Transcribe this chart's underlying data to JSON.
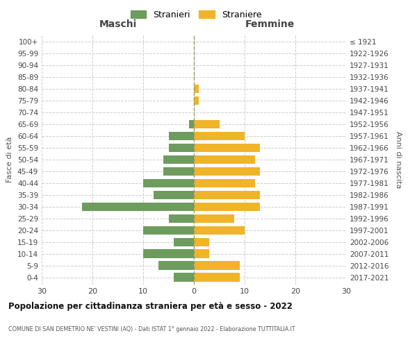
{
  "age_groups": [
    "0-4",
    "5-9",
    "10-14",
    "15-19",
    "20-24",
    "25-29",
    "30-34",
    "35-39",
    "40-44",
    "45-49",
    "50-54",
    "55-59",
    "60-64",
    "65-69",
    "70-74",
    "75-79",
    "80-84",
    "85-89",
    "90-94",
    "95-99",
    "100+"
  ],
  "birth_years": [
    "2017-2021",
    "2012-2016",
    "2007-2011",
    "2002-2006",
    "1997-2001",
    "1992-1996",
    "1987-1991",
    "1982-1986",
    "1977-1981",
    "1972-1976",
    "1967-1971",
    "1962-1966",
    "1957-1961",
    "1952-1956",
    "1947-1951",
    "1942-1946",
    "1937-1941",
    "1932-1936",
    "1927-1931",
    "1922-1926",
    "≤ 1921"
  ],
  "males": [
    4,
    7,
    10,
    4,
    10,
    5,
    22,
    8,
    10,
    6,
    6,
    5,
    5,
    1,
    0,
    0,
    0,
    0,
    0,
    0,
    0
  ],
  "females": [
    9,
    9,
    3,
    3,
    10,
    8,
    13,
    13,
    12,
    13,
    12,
    13,
    10,
    5,
    0,
    1,
    1,
    0,
    0,
    0,
    0
  ],
  "color_males": "#6e9b5e",
  "color_females": "#f0b429",
  "xlim": 30,
  "xlabel_left": "Maschi",
  "xlabel_right": "Femmine",
  "ylabel_left": "Fasce di età",
  "ylabel_right": "Anni di nascita",
  "legend_stranieri": "Stranieri",
  "legend_straniere": "Straniere",
  "title": "Popolazione per cittadinanza straniera per età e sesso - 2022",
  "subtitle": "COMUNE DI SAN DEMETRIO NE' VESTINI (AQ) - Dati ISTAT 1° gennaio 2022 - Elaborazione TUTTITALIA.IT",
  "bar_height": 0.75,
  "grid_color": "#cccccc",
  "background_color": "#ffffff",
  "center_line_color": "#999966"
}
